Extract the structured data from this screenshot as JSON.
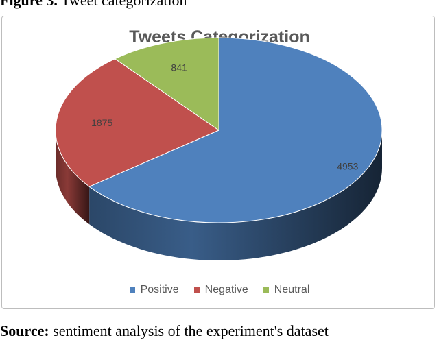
{
  "figure_caption": {
    "label": "Figure 3.",
    "text": "Tweet categorization"
  },
  "source_caption": {
    "label": "Source:",
    "text": "sentiment analysis of the experiment's dataset"
  },
  "chart_data": {
    "type": "pie",
    "title": "Tweets Categorization",
    "categories": [
      "Positive",
      "Negative",
      "Neutral"
    ],
    "values": [
      4953,
      1875,
      841
    ],
    "colors": [
      "#4f81bd",
      "#c0504d",
      "#9bbb59"
    ],
    "legend_position": "bottom",
    "style": "3d"
  }
}
